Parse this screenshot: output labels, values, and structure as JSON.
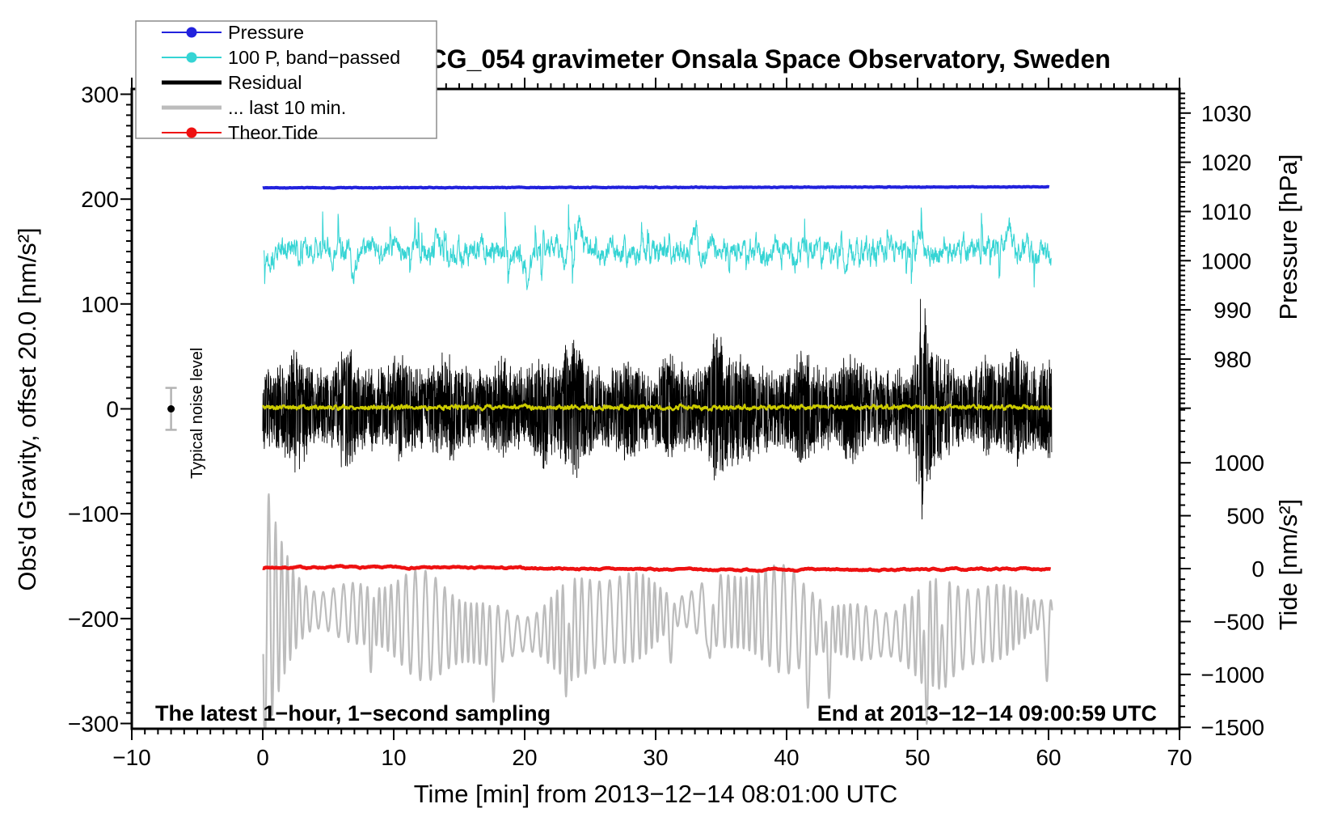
{
  "chart_data": {
    "type": "line",
    "title": "SCG_054 gravimeter Onsala Space Observatory, Sweden",
    "xlabel": "Time [min] from 2013−12−14 08:01:00 UTC",
    "x_axis": {
      "min": -10,
      "max": 70,
      "major_step": 10,
      "minor_step": 1,
      "tick_values": [
        -10,
        0,
        10,
        20,
        30,
        40,
        50,
        60,
        70
      ],
      "tick_labels": [
        "−10",
        "0",
        "10",
        "20",
        "30",
        "40",
        "50",
        "60",
        "70"
      ]
    },
    "gravity_axis": {
      "label": "Obs'd Gravity, offset 20.0 [nm/s²]",
      "min": -305,
      "max": 305,
      "major_step": 100,
      "minor_step": 10,
      "tick_values": [
        300,
        200,
        100,
        0,
        -100,
        -200,
        -300
      ],
      "tick_labels": [
        "300",
        "200",
        "100",
        "0",
        "−100",
        "−200",
        "−300"
      ]
    },
    "pressure_axis": {
      "label": "Pressure [hPa]",
      "tick_values": [
        1030,
        1020,
        1010,
        1000,
        990,
        980
      ],
      "tick_labels": [
        "1030",
        "1020",
        "1010",
        "1000",
        "990",
        "980"
      ],
      "minor_step": 1,
      "minor_range": [
        970,
        1034
      ],
      "map": {
        "g_at_1030": 282,
        "g_per_hPa": 4.69
      }
    },
    "tide_axis": {
      "label": "Tide [nm/s²]",
      "tick_values": [
        1000,
        500,
        0,
        -500,
        -1000,
        -1500
      ],
      "tick_labels": [
        "1000",
        "500",
        "0",
        "−500",
        "−1000",
        "−1500"
      ],
      "minor_step": 100,
      "minor_range": [
        -1500,
        1500
      ],
      "map": {
        "g_at_0": -152.3,
        "g_per_unit": 0.1009
      }
    },
    "legend": {
      "items": [
        {
          "label": "Pressure",
          "color": "#2222dd",
          "dot": true,
          "thick": false
        },
        {
          "label": "100 P, band−passed",
          "color": "#35d4d4",
          "dot": true,
          "thick": false
        },
        {
          "label": "Residual",
          "color": "#000000",
          "dot": false,
          "thick": true
        },
        {
          "label": "... last 10 min.",
          "color": "#bcbcbc",
          "dot": false,
          "thick": true
        },
        {
          "label": "Theor.Tide",
          "color": "#ee1111",
          "dot": true,
          "thick": false
        }
      ]
    },
    "annotations": {
      "bottom_left": "The latest 1−hour, 1−second sampling",
      "bottom_right": "End at 2013−12−14 09:00:59 UTC",
      "noise_label": "Typical noise level",
      "noise_marker": {
        "t": -7,
        "g": 0,
        "err": 20
      }
    },
    "series": [
      {
        "name": "last-10-min",
        "label": "... last 10 min.",
        "axis": "tide",
        "kind": "smooth_osc",
        "color": "#bcbcbc",
        "width": 2.2,
        "seed": 11,
        "t0": 0.04,
        "t1": 60.3,
        "dt": 0.02,
        "center": -510,
        "base_amp": 330,
        "amp_mod": 130,
        "wander": 115,
        "period": 0.72,
        "transient": {
          "mult": 2.1,
          "decay": 1.05
        },
        "dips": [
          {
            "t": 8.3,
            "a": -300
          },
          {
            "t": 17.6,
            "a": -360
          },
          {
            "t": 23.3,
            "a": -480
          },
          {
            "t": 31.2,
            "a": -380
          },
          {
            "t": 34.2,
            "a": -620
          },
          {
            "t": 41.6,
            "a": -480
          },
          {
            "t": 43.2,
            "a": -520
          },
          {
            "t": 50.6,
            "a": -640
          },
          {
            "t": 51.9,
            "a": -440
          },
          {
            "t": 59.9,
            "a": -560
          }
        ]
      },
      {
        "name": "theor-tide",
        "label": "Theor.Tide",
        "axis": "tide",
        "kind": "flat",
        "color": "#ee1111",
        "width": 4.5,
        "seed": 7,
        "t0": 0,
        "t1": 60.2,
        "dt": 0.08,
        "center": 0,
        "amp": 12,
        "period": 70,
        "noise": 5
      },
      {
        "name": "residual",
        "label": "Residual",
        "axis": "gravity",
        "kind": "hash",
        "color": "#000000",
        "width": 0.9,
        "seed": 3,
        "t0": 0,
        "t1": 60.25,
        "dt": 0.015,
        "base_env": 42,
        "bursts": [
          {
            "t": 2.4,
            "w": 0.9,
            "a": 22
          },
          {
            "t": 6.4,
            "w": 0.6,
            "a": 26
          },
          {
            "t": 10.5,
            "w": 0.8,
            "a": 14
          },
          {
            "t": 14.2,
            "w": 0.9,
            "a": 18
          },
          {
            "t": 18.1,
            "w": 0.5,
            "a": 16
          },
          {
            "t": 21.4,
            "w": 0.6,
            "a": 18
          },
          {
            "t": 23.7,
            "w": 0.9,
            "a": 30
          },
          {
            "t": 27.9,
            "w": 0.6,
            "a": 16
          },
          {
            "t": 31.1,
            "w": 0.7,
            "a": 18
          },
          {
            "t": 34.6,
            "w": 0.6,
            "a": 36
          },
          {
            "t": 36.2,
            "w": 1.4,
            "a": 18
          },
          {
            "t": 41.2,
            "w": 0.7,
            "a": 22
          },
          {
            "t": 44.9,
            "w": 0.9,
            "a": 16
          },
          {
            "t": 50.35,
            "w": 0.45,
            "a": 62
          },
          {
            "t": 51.2,
            "w": 1.1,
            "a": 20
          },
          {
            "t": 55.3,
            "w": 0.7,
            "a": 14
          },
          {
            "t": 57.4,
            "w": 0.8,
            "a": 20
          },
          {
            "t": 59.9,
            "w": 0.4,
            "a": 18
          }
        ]
      },
      {
        "name": "residual-smoothed",
        "label": "Residual smoothed",
        "axis": "gravity",
        "kind": "ar",
        "color": "#cbcb00",
        "width": 2.4,
        "seed": 5,
        "t0": 0,
        "t1": 60.2,
        "dt": 0.04,
        "center": 1.5,
        "alpha": 0.55,
        "sigma": 1.7
      },
      {
        "name": "pressure",
        "label": "Pressure",
        "axis": "pressure",
        "kind": "ar",
        "color": "#2222dd",
        "width": 4,
        "seed": 9,
        "t0": 0,
        "t1": 60.05,
        "dt": 0.05,
        "center": 1014.8,
        "alpha": 0.6,
        "sigma": 0.05,
        "drift": 0.2
      },
      {
        "name": "band-passed",
        "label": "100 P, band−passed",
        "axis": "gravity",
        "kind": "ar",
        "color": "#35d4d4",
        "width": 1.1,
        "seed": 13,
        "t0": 0.1,
        "t1": 60.2,
        "dt": 0.025,
        "center": 150,
        "alpha": 0.72,
        "sigma": 8.5,
        "spikes": {
          "prob": 0.012,
          "amp": 24
        },
        "dips": [
          {
            "t": 6.9,
            "a": -24
          },
          {
            "t": 13.3,
            "a": 20
          },
          {
            "t": 20.3,
            "a": -36
          },
          {
            "t": 24.2,
            "a": 24
          },
          {
            "t": 33.0,
            "a": 22
          },
          {
            "t": 44.5,
            "a": -20
          },
          {
            "t": 50.2,
            "a": 26
          },
          {
            "t": 57.0,
            "a": 24
          }
        ]
      }
    ]
  }
}
